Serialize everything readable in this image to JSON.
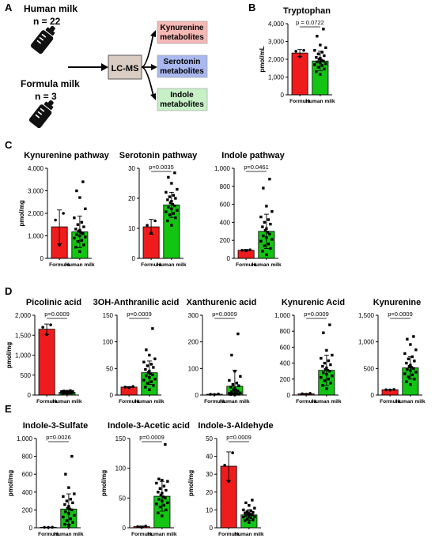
{
  "panel_letters": [
    "A",
    "B",
    "C",
    "D",
    "E"
  ],
  "schematic": {
    "human_milk": {
      "label": "Human milk",
      "n": "n = 22"
    },
    "formula_milk": {
      "label": "Formula milk",
      "n": "n = 3"
    },
    "lcms_label": "LC-MS",
    "outputs": [
      {
        "line1": "Kynurenine",
        "line2": "metabolites",
        "color": "#f4b8b5"
      },
      {
        "line1": "Serotonin",
        "line2": "metabolites",
        "color": "#a9b8ee"
      },
      {
        "line1": "Indole",
        "line2": "metabolites",
        "color": "#c7f0c7"
      }
    ]
  },
  "colors": {
    "formula": "#ee1c1c",
    "human_milk": "#13c413"
  },
  "chart_data": [
    {
      "id": "B-tryptophan",
      "type": "bar",
      "title": "Tryptophan",
      "ylabel": "pmol/mL",
      "categories": [
        "Formula",
        "Human milk"
      ],
      "values": [
        2350,
        1900
      ],
      "errors": [
        200,
        550
      ],
      "ylim": [
        0,
        4000
      ],
      "yticks": [
        0,
        1000,
        2000,
        3000,
        4000
      ],
      "ytick_labels": [
        "0",
        "1,000",
        "2,000",
        "3,000",
        "4,000"
      ],
      "pvalue": "p = 0.0722",
      "points": [
        [
          2150,
          2450,
          2500
        ],
        [
          1150,
          1300,
          1450,
          1550,
          1650,
          1700,
          1750,
          1800,
          1850,
          1900,
          1950,
          2000,
          2050,
          2100,
          2200,
          2300,
          2400,
          2500,
          2650,
          2800,
          3300,
          3700
        ]
      ]
    },
    {
      "id": "C-kynurenine-pathway",
      "type": "bar",
      "title": "Kynurenine pathway",
      "ylabel": "pmol/mg",
      "categories": [
        "Formula",
        "Human milk"
      ],
      "values": [
        1400,
        1180
      ],
      "errors": [
        750,
        700
      ],
      "ylim": [
        0,
        4000
      ],
      "yticks": [
        0,
        1000,
        2000,
        3000,
        4000
      ],
      "ytick_labels": [
        "0",
        "1,000",
        "2,000",
        "3,000",
        "4,000"
      ],
      "pvalue": "",
      "points": [
        [
          600,
          1700,
          2000
        ],
        [
          300,
          500,
          600,
          750,
          800,
          900,
          950,
          1000,
          1050,
          1100,
          1150,
          1200,
          1250,
          1300,
          1400,
          1500,
          1600,
          1800,
          2200,
          2700,
          3000,
          3400
        ]
      ]
    },
    {
      "id": "C-serotonin-pathway",
      "type": "bar",
      "title": "Serotonin pathway",
      "ylabel": "",
      "categories": [
        "Formula",
        "Human milk"
      ],
      "values": [
        10.5,
        17.8
      ],
      "errors": [
        2.5,
        4.2
      ],
      "ylim": [
        0,
        30
      ],
      "yticks": [
        0,
        10,
        20,
        30
      ],
      "ytick_labels": [
        "0",
        "10",
        "20",
        "30"
      ],
      "pvalue": "p=0.0035",
      "points": [
        [
          8.5,
          11,
          12.5
        ],
        [
          11,
          12.5,
          13.5,
          14.5,
          15,
          15.5,
          16,
          16.5,
          17,
          17.5,
          18,
          18.5,
          19,
          19.5,
          20,
          20.5,
          21,
          22,
          23,
          25,
          27,
          28.5
        ]
      ]
    },
    {
      "id": "C-indole-pathway",
      "type": "bar",
      "title": "Indole pathway",
      "ylabel": "",
      "categories": [
        "Formula",
        "Human milk"
      ],
      "values": [
        90,
        300
      ],
      "errors": [
        10,
        190
      ],
      "ylim": [
        0,
        1000
      ],
      "yticks": [
        0,
        200,
        400,
        600,
        800,
        1000
      ],
      "ytick_labels": [
        "0",
        "200",
        "400",
        "600",
        "800",
        "1,000"
      ],
      "pvalue": "p=0.0461",
      "points": [
        [
          85,
          90,
          95
        ],
        [
          40,
          80,
          110,
          140,
          160,
          190,
          210,
          230,
          250,
          270,
          290,
          310,
          330,
          350,
          380,
          400,
          430,
          460,
          520,
          580,
          780,
          880
        ]
      ]
    },
    {
      "id": "D-picolinic-acid",
      "type": "bar",
      "title": "Picolinic acid",
      "ylabel": "pmol/mg",
      "categories": [
        "Formula",
        "Human milk"
      ],
      "values": [
        1650,
        70
      ],
      "errors": [
        130,
        20
      ],
      "ylim": [
        0,
        2000
      ],
      "yticks": [
        0,
        500,
        1000,
        1500,
        2000
      ],
      "ytick_labels": [
        "0",
        "500",
        "1,000",
        "1,500",
        "2,000"
      ],
      "pvalue": "p=0.0009",
      "points": [
        [
          1520,
          1700,
          1760
        ],
        [
          40,
          45,
          50,
          55,
          58,
          60,
          62,
          65,
          68,
          70,
          72,
          74,
          76,
          78,
          80,
          82,
          85,
          88,
          90,
          95,
          100,
          110
        ]
      ]
    },
    {
      "id": "D-3oh-anthranilic-acid",
      "type": "bar",
      "title": "3OH-Anthranilic acid",
      "ylabel": "",
      "categories": [
        "Formula",
        "Human milk"
      ],
      "values": [
        15,
        42
      ],
      "errors": [
        1,
        22
      ],
      "ylim": [
        0,
        150
      ],
      "yticks": [
        0,
        50,
        100,
        150
      ],
      "ytick_labels": [
        "0",
        "50",
        "100",
        "150"
      ],
      "pvalue": "p=0.0009",
      "points": [
        [
          14,
          15,
          16
        ],
        [
          10,
          15,
          18,
          22,
          25,
          28,
          30,
          33,
          36,
          38,
          40,
          42,
          45,
          48,
          52,
          55,
          58,
          62,
          68,
          75,
          85,
          125
        ]
      ]
    },
    {
      "id": "D-xanthurenic-acid",
      "type": "bar",
      "title": "Xanthurenic acid",
      "ylabel": "",
      "categories": [
        "Formula",
        "Human milk"
      ],
      "values": [
        3,
        33
      ],
      "errors": [
        1,
        60
      ],
      "ylim": [
        0,
        300
      ],
      "yticks": [
        0,
        100,
        200,
        300
      ],
      "ytick_labels": [
        "0",
        "100",
        "200",
        "300"
      ],
      "pvalue": "p=0.0009",
      "points": [
        [
          2,
          3,
          4
        ],
        [
          1,
          2,
          3,
          4,
          5,
          6,
          8,
          10,
          12,
          15,
          18,
          20,
          25,
          30,
          35,
          40,
          45,
          55,
          70,
          90,
          150,
          230
        ]
      ]
    },
    {
      "id": "D-kynurenic-acid",
      "type": "bar",
      "title": "Kynurenic Acid",
      "ylabel": "",
      "categories": [
        "Formula",
        "Human milk"
      ],
      "values": [
        15,
        310
      ],
      "errors": [
        4,
        190
      ],
      "ylim": [
        0,
        1000
      ],
      "yticks": [
        0,
        200,
        400,
        600,
        800,
        1000
      ],
      "ytick_labels": [
        "0",
        "200",
        "400",
        "600",
        "800",
        "1,000"
      ],
      "pvalue": "p=0.0009",
      "points": [
        [
          10,
          15,
          20
        ],
        [
          80,
          120,
          150,
          180,
          200,
          220,
          240,
          260,
          280,
          300,
          310,
          320,
          340,
          360,
          380,
          400,
          430,
          460,
          500,
          560,
          780,
          880
        ]
      ]
    },
    {
      "id": "D-kynurenine",
      "type": "bar",
      "title": "Kynurenine",
      "ylabel": "",
      "categories": [
        "Formula",
        "Human milk"
      ],
      "values": [
        100,
        510
      ],
      "errors": [
        5,
        210
      ],
      "ylim": [
        0,
        1500
      ],
      "yticks": [
        0,
        500,
        1000,
        1500
      ],
      "ytick_labels": [
        "0",
        "500",
        "1,000",
        "1,500"
      ],
      "pvalue": "p=0.0009",
      "points": [
        [
          95,
          100,
          105
        ],
        [
          200,
          250,
          300,
          340,
          380,
          400,
          430,
          460,
          480,
          500,
          520,
          540,
          560,
          600,
          640,
          680,
          720,
          780,
          850,
          950,
          1050,
          1100
        ]
      ]
    },
    {
      "id": "E-indole-3-sulfate",
      "type": "bar",
      "title": "Indole-3-Sulfate",
      "ylabel": "pmol/mg",
      "categories": [
        "Formula",
        "Human milk"
      ],
      "values": [
        5,
        210
      ],
      "errors": [
        2,
        170
      ],
      "ylim": [
        0,
        1000
      ],
      "yticks": [
        0,
        200,
        400,
        600,
        800,
        1000
      ],
      "ytick_labels": [
        "0",
        "200",
        "400",
        "600",
        "800",
        "1,000"
      ],
      "pvalue": "p=0.0026",
      "points": [
        [
          4,
          5,
          6
        ],
        [
          20,
          40,
          60,
          80,
          100,
          120,
          140,
          160,
          180,
          200,
          210,
          220,
          240,
          260,
          280,
          300,
          320,
          350,
          380,
          450,
          600,
          800
        ]
      ]
    },
    {
      "id": "E-indole-3-acetic-acid",
      "type": "bar",
      "title": "Indole-3-Acetic acid",
      "ylabel": "pmol/mg",
      "categories": [
        "Formula",
        "Human milk"
      ],
      "values": [
        2,
        53
      ],
      "errors": [
        1,
        25
      ],
      "ylim": [
        0,
        150
      ],
      "yticks": [
        0,
        50,
        100,
        150
      ],
      "ytick_labels": [
        "0",
        "50",
        "100",
        "150"
      ],
      "pvalue": "p=0.0009",
      "points": [
        [
          1,
          2,
          3
        ],
        [
          20,
          25,
          30,
          35,
          38,
          40,
          42,
          45,
          48,
          50,
          52,
          55,
          58,
          60,
          63,
          66,
          70,
          75,
          78,
          80,
          82,
          140
        ]
      ]
    },
    {
      "id": "E-indole-3-aldehyde",
      "type": "bar",
      "title": "Indole-3-Aldehyde",
      "ylabel": "pmol/mg",
      "categories": [
        "Formula",
        "Human milk"
      ],
      "values": [
        34.5,
        7.2
      ],
      "errors": [
        8,
        3
      ],
      "ylim": [
        0,
        50
      ],
      "yticks": [
        0,
        10,
        20,
        30,
        40,
        50
      ],
      "ytick_labels": [
        "0",
        "10",
        "20",
        "30",
        "40",
        "50"
      ],
      "pvalue": "p=0.0009",
      "points": [
        [
          26,
          35,
          42
        ],
        [
          3,
          4,
          4.5,
          5,
          5.5,
          6,
          6.2,
          6.5,
          7,
          7.2,
          7.5,
          7.8,
          8,
          8.3,
          8.6,
          9,
          9.5,
          10,
          11,
          12.5,
          14,
          15.5
        ]
      ]
    }
  ]
}
